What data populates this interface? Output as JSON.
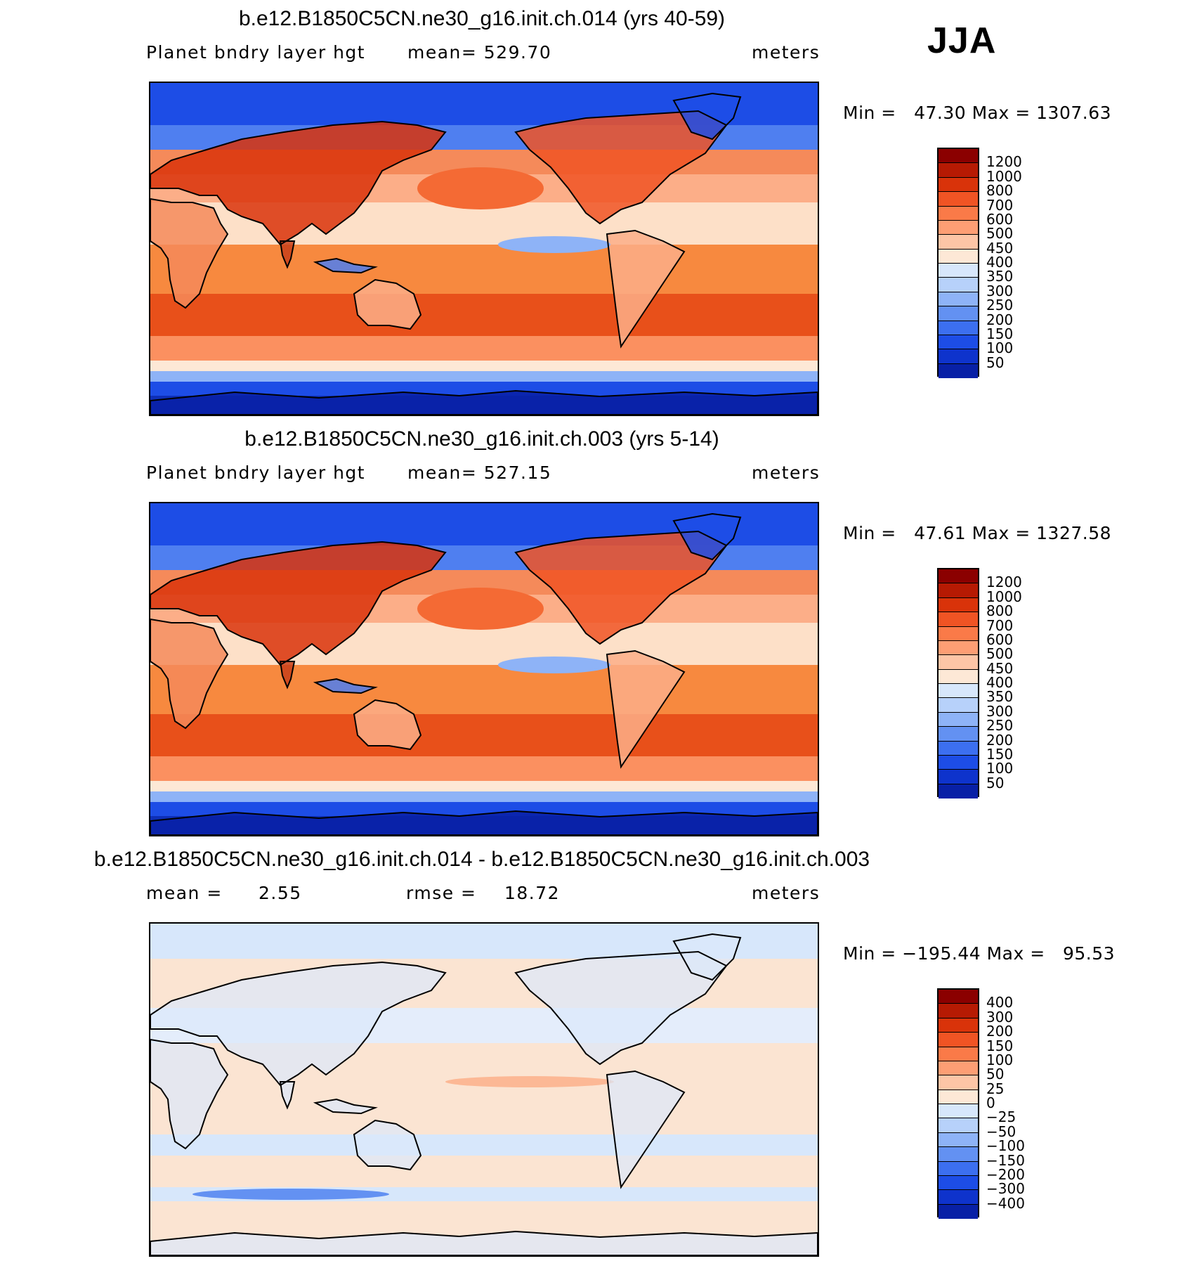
{
  "season": "JJA",
  "panels": [
    {
      "title": "b.e12.B1850C5CN.ne30_g16.init.ch.014 (yrs 40-59)",
      "variable": "Planet bndry layer hgt",
      "mean_text": "mean= 529.70",
      "units": "meters",
      "minmax_text": "Min =   47.30 Max = 1307.63",
      "colorbar": {
        "colors": [
          "#8b0000",
          "#b61a03",
          "#d9330a",
          "#f05424",
          "#fa7a48",
          "#fd9e74",
          "#fdc5a6",
          "#fde8d6",
          "#d7e7fb",
          "#b7d1fa",
          "#8eb3f7",
          "#6391f2",
          "#3c6ff0",
          "#1d4de6",
          "#0e33cc",
          "#0820a6",
          "#040e80"
        ],
        "labels": [
          "1200",
          "1000",
          "800",
          "700",
          "600",
          "500",
          "450",
          "400",
          "350",
          "300",
          "250",
          "200",
          "150",
          "100",
          "50"
        ]
      },
      "field_type": "abs"
    },
    {
      "title": "b.e12.B1850C5CN.ne30_g16.init.ch.003 (yrs 5-14)",
      "variable": "Planet bndry layer hgt",
      "mean_text": "mean= 527.15",
      "units": "meters",
      "minmax_text": "Min =   47.61 Max = 1327.58",
      "colorbar": {
        "colors": [
          "#8b0000",
          "#b61a03",
          "#d9330a",
          "#f05424",
          "#fa7a48",
          "#fd9e74",
          "#fdc5a6",
          "#fde8d6",
          "#d7e7fb",
          "#b7d1fa",
          "#8eb3f7",
          "#6391f2",
          "#3c6ff0",
          "#1d4de6",
          "#0e33cc",
          "#0820a6",
          "#040e80"
        ],
        "labels": [
          "1200",
          "1000",
          "800",
          "700",
          "600",
          "500",
          "450",
          "400",
          "350",
          "300",
          "250",
          "200",
          "150",
          "100",
          "50"
        ]
      },
      "field_type": "abs"
    },
    {
      "title": "b.e12.B1850C5CN.ne30_g16.init.ch.014 - b.e12.B1850C5CN.ne30_g16.init.ch.003",
      "mean_label": "mean =",
      "mean_value": "2.55",
      "rmse_label": "rmse =",
      "rmse_value": "18.72",
      "units": "meters",
      "minmax_text": "Min = −195.44 Max =   95.53",
      "colorbar": {
        "colors": [
          "#8b0000",
          "#b61a03",
          "#d9330a",
          "#f05424",
          "#fa7a48",
          "#fd9e74",
          "#fdc5a6",
          "#fde8d6",
          "#d7e7fb",
          "#b7d1fa",
          "#8eb3f7",
          "#6391f2",
          "#3c6ff0",
          "#1d4de6",
          "#0e33cc",
          "#0820a6",
          "#040e80"
        ],
        "labels": [
          "400",
          "300",
          "200",
          "150",
          "100",
          "50",
          "25",
          "0",
          "−25",
          "−50",
          "−100",
          "−150",
          "−200",
          "−300",
          "−400"
        ]
      },
      "field_type": "diff"
    }
  ]
}
